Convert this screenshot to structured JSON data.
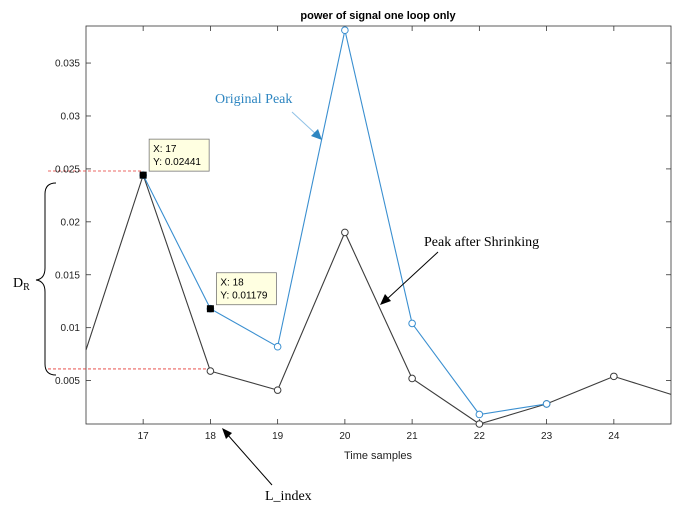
{
  "chart_data": {
    "type": "line",
    "title": "power of signal one loop only",
    "xlabel": "Time samples",
    "ylabel": "",
    "xlim": [
      16.15,
      24.85
    ],
    "ylim": [
      0.0009,
      0.0385
    ],
    "xticks": [
      17,
      18,
      19,
      20,
      21,
      22,
      23,
      24
    ],
    "yticks": [
      0.005,
      0.01,
      0.015,
      0.02,
      0.025,
      0.03,
      0.035
    ],
    "ytick_labels": [
      "0.005",
      "0.01",
      "0.015",
      "0.02",
      "0.025",
      "0.03",
      "0.035"
    ],
    "grid": false,
    "series": [
      {
        "color": "#3a8fd0",
        "marker": "circle",
        "x": [
          17,
          18,
          19,
          20,
          21,
          22,
          23
        ],
        "y": [
          0.02441,
          0.01179,
          0.0082,
          0.0381,
          0.0104,
          0.0018,
          0.0028
        ]
      },
      {
        "color": "#3c3c3c",
        "marker": "circle",
        "x": [
          16.15,
          17,
          18,
          19,
          20,
          21,
          22,
          23,
          24,
          24.85
        ],
        "y": [
          0.0079,
          0.02441,
          0.0059,
          0.0041,
          0.019,
          0.0052,
          0.0009,
          0.0028,
          0.0054,
          0.0037
        ],
        "marker_points": [
          18,
          19,
          20,
          21,
          22,
          23,
          24
        ]
      }
    ],
    "datatips": [
      {
        "x": 17,
        "y": 0.02441,
        "line1": "X: 17",
        "line2": "Y: 0.02441"
      },
      {
        "x": 18,
        "y": 0.01179,
        "line1": "X: 18",
        "line2": "Y: 0.01179"
      }
    ],
    "annotations": {
      "original_peak": "Original Peak",
      "peak_after_shrinking": "Peak after Shrinking",
      "dr_label_main": "D",
      "dr_label_sub": "R",
      "l_index": "L_index"
    },
    "reference_lines": {
      "upper_y": 0.0248,
      "lower_y": 0.0061
    }
  },
  "colors": {
    "accent_blue": "#3a8fd0",
    "dark_line": "#3c3c3c",
    "ref_red": "#e53935",
    "tip_bg": "#ffffe1"
  }
}
